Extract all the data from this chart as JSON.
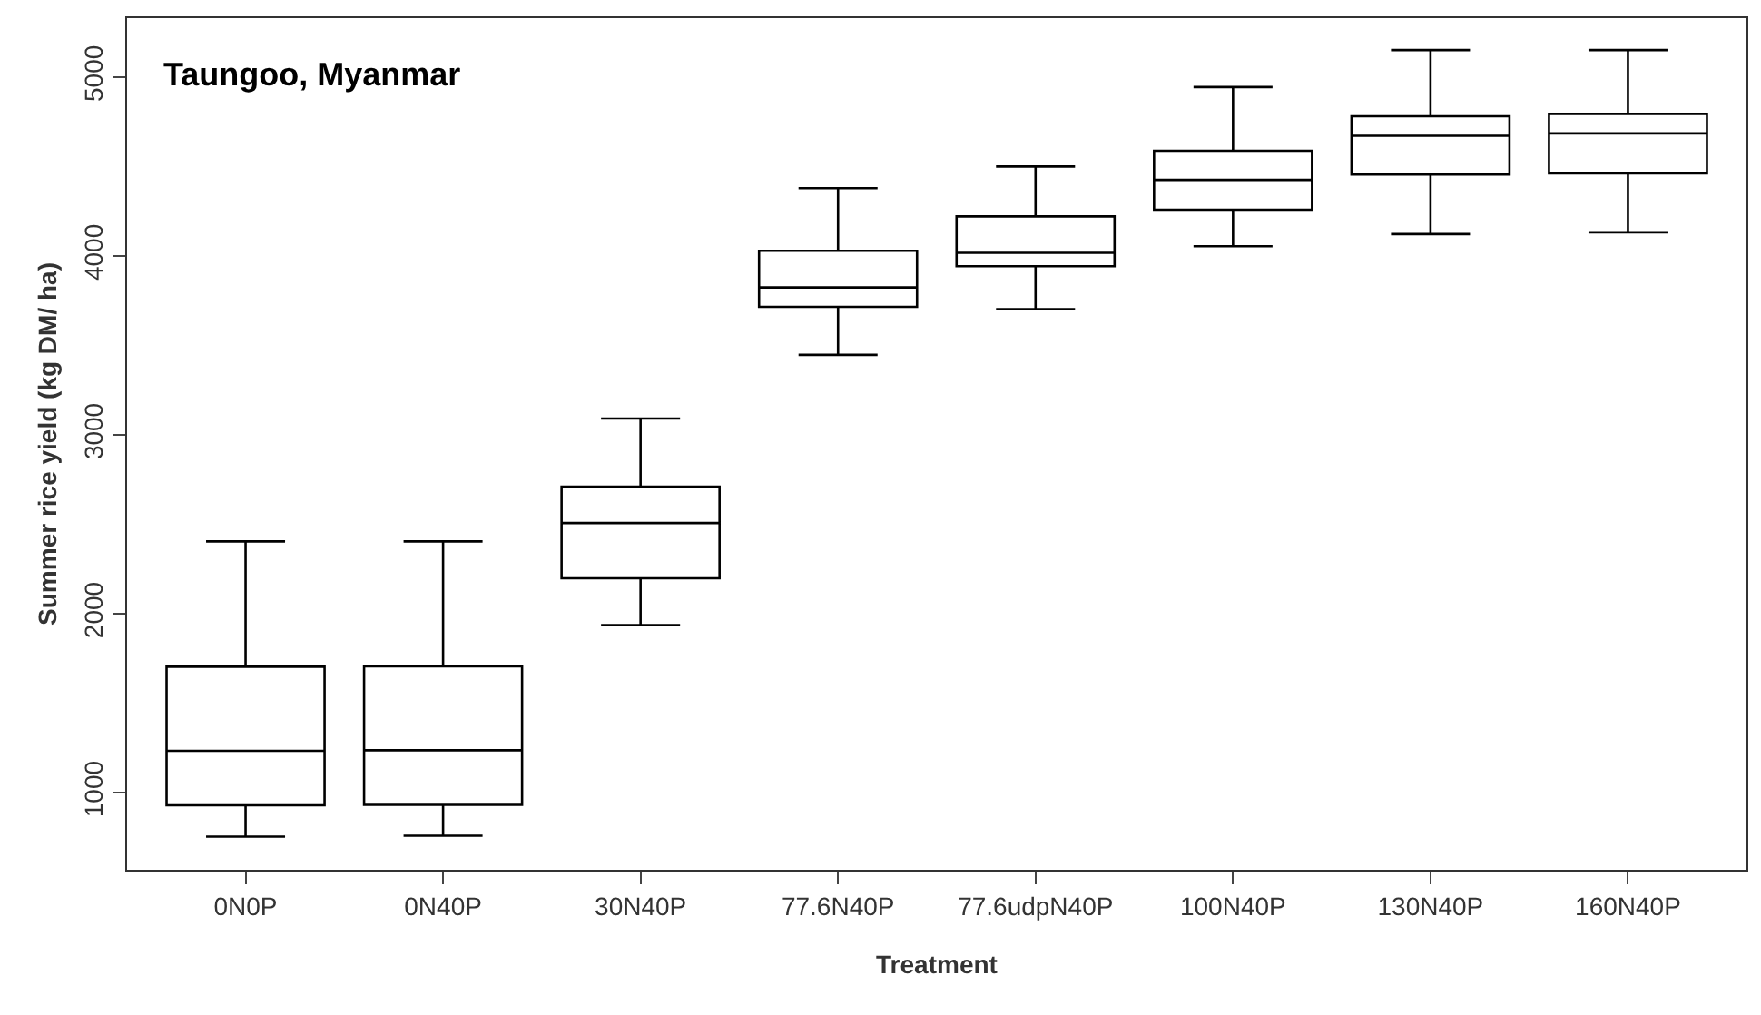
{
  "chart_data": {
    "type": "box",
    "title": "Taungoo, Myanmar",
    "xlabel": "Treatment",
    "ylabel": "Summer rice yield (kg DM/ ha)",
    "categories": [
      "0N0P",
      "0N40P",
      "30N40P",
      "77.6N40P",
      "77.6udpN40P",
      "100N40P",
      "130N40P",
      "160N40P"
    ],
    "color": "#000000",
    "boxes": [
      {
        "low": 755,
        "q1": 930,
        "median": 1235,
        "q3": 1705,
        "high": 2405
      },
      {
        "low": 760,
        "q1": 933,
        "median": 1238,
        "q3": 1707,
        "high": 2405
      },
      {
        "low": 1937,
        "q1": 2199,
        "median": 2508,
        "q3": 2711,
        "high": 3092
      },
      {
        "low": 3448,
        "q1": 3716,
        "median": 3825,
        "q3": 4030,
        "high": 4380
      },
      {
        "low": 3703,
        "q1": 3943,
        "median": 4018,
        "q3": 4222,
        "high": 4501
      },
      {
        "low": 4055,
        "q1": 4259,
        "median": 4426,
        "q3": 4589,
        "high": 4945
      },
      {
        "low": 4123,
        "q1": 4456,
        "median": 4673,
        "q3": 4782,
        "high": 5152
      },
      {
        "low": 4133,
        "q1": 4462,
        "median": 4686,
        "q3": 4795,
        "high": 5152
      }
    ],
    "ylim": [
      570,
      5330
    ],
    "yticks": [
      1000,
      2000,
      3000,
      4000,
      5000
    ]
  }
}
